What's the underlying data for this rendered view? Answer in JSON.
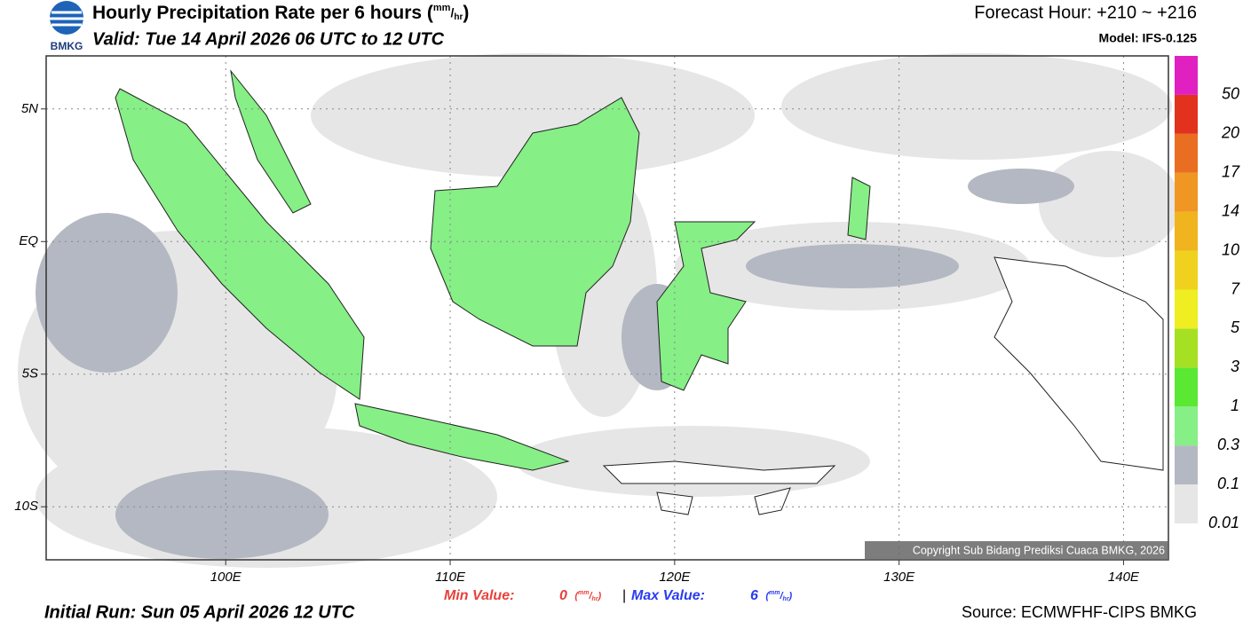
{
  "header": {
    "title": "Hourly Precipitation Rate per 6 hours (",
    "unit": {
      "num": "mm",
      "sep": "/",
      "den": "hr",
      "close": ")",
      "open": "("
    },
    "valid": "Valid: Tue 14 April 2026 06 UTC to 12 UTC",
    "forecast": "Forecast Hour: +210 ~ +216",
    "model": "Model: IFS-0.125",
    "logo": "BMKG"
  },
  "map": {
    "lon_range": [
      92,
      142
    ],
    "lat_range": [
      -12,
      7
    ],
    "lon_ticks": [
      {
        "value": 100,
        "label": "100E"
      },
      {
        "value": 110,
        "label": "110E"
      },
      {
        "value": 120,
        "label": "120E"
      },
      {
        "value": 130,
        "label": "130E"
      },
      {
        "value": 140,
        "label": "140E"
      }
    ],
    "lat_ticks": [
      {
        "value": 5,
        "label": "5N"
      },
      {
        "value": 0,
        "label": "EQ"
      },
      {
        "value": -5,
        "label": "5S"
      },
      {
        "value": -10,
        "label": "10S"
      }
    ],
    "copyright": "Copyright Sub Bidang Prediksi Cuaca BMKG, 2026"
  },
  "colorbar": {
    "levels": [
      0.01,
      0.1,
      0.3,
      1,
      3,
      5,
      7,
      10,
      14,
      17,
      20,
      50
    ],
    "colors": [
      "#e6e6e6",
      "#b4b8c2",
      "#86ef86",
      "#5ae832",
      "#a6e022",
      "#eeee22",
      "#f0d21e",
      "#f0b41e",
      "#f09622",
      "#ea6e22",
      "#e2321e",
      "#e020c0"
    ]
  },
  "footer": {
    "min_label": "Min Value:",
    "min_value": 0,
    "separator": "|",
    "max_label": "Max Value:",
    "max_value": 6,
    "initial_run": "Initial Run: Sun 05 April 2026 12 UTC",
    "source": "Source: ECMWFHF-CIPS BMKG"
  }
}
